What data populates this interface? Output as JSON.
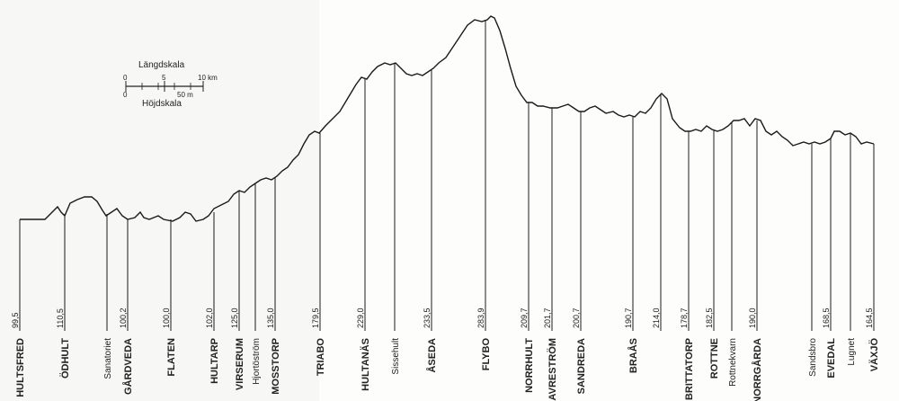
{
  "scale": {
    "length_title": "Längdskala",
    "height_title": "Höjdskala",
    "length_ticks": [
      "0",
      "5",
      "10 km"
    ],
    "height_ticks": [
      "0",
      "50 m"
    ]
  },
  "stations": [
    {
      "name": "HULTSFRED",
      "elevation": "99,5",
      "major": true
    },
    {
      "name": "ÖDHULT",
      "elevation": "110,5",
      "major": true
    },
    {
      "name": "Sanatoriet",
      "elevation": "",
      "major": false
    },
    {
      "name": "GÅRDVEDA",
      "elevation": "100,2",
      "major": true
    },
    {
      "name": "FLATEN",
      "elevation": "100,0",
      "major": true
    },
    {
      "name": "HULTARP",
      "elevation": "102,0",
      "major": true
    },
    {
      "name": "VIRSERUM",
      "elevation": "125,0",
      "major": true
    },
    {
      "name": "Hjortöström",
      "elevation": "",
      "major": false
    },
    {
      "name": "MOSSTORP",
      "elevation": "135,0",
      "major": true
    },
    {
      "name": "TRIABO",
      "elevation": "179,5",
      "major": true
    },
    {
      "name": "HULTANÄS",
      "elevation": "229,0",
      "major": true
    },
    {
      "name": "Sissehult",
      "elevation": "",
      "major": false
    },
    {
      "name": "ÅSEDA",
      "elevation": "233,5",
      "major": true
    },
    {
      "name": "FLYBO",
      "elevation": "283,9",
      "major": true
    },
    {
      "name": "NORRHULT",
      "elevation": "209,7",
      "major": true
    },
    {
      "name": "KLAVRESTRÖM",
      "elevation": "201,7",
      "major": true
    },
    {
      "name": "SANDREDA",
      "elevation": "200,7",
      "major": true
    },
    {
      "name": "BRAÅS",
      "elevation": "190,7",
      "major": true
    },
    {
      "name": "",
      "elevation": "214,0",
      "major": true
    },
    {
      "name": "BRITTATORP",
      "elevation": "178,7",
      "major": true
    },
    {
      "name": "ROTTNE",
      "elevation": "182,5",
      "major": true
    },
    {
      "name": "Rottnekvarn",
      "elevation": "",
      "major": false
    },
    {
      "name": "NORRGÅRDA",
      "elevation": "190,0",
      "major": true
    },
    {
      "name": "Sandsbro",
      "elevation": "",
      "major": false
    },
    {
      "name": "EVEDAL",
      "elevation": "168,5",
      "major": true
    },
    {
      "name": "Lugnet",
      "elevation": "",
      "major": false
    },
    {
      "name": "VÄXJÖ",
      "elevation": "164,5",
      "major": true
    }
  ]
}
